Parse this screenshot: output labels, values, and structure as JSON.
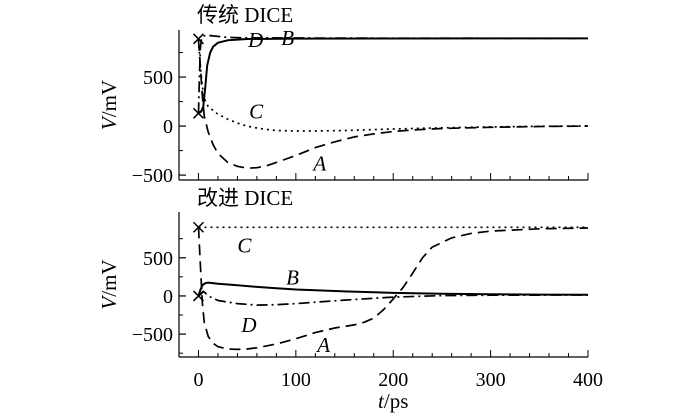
{
  "chart_data": [
    {
      "type": "line",
      "title": "传统 DICE",
      "ylabel_var": "V",
      "ylabel_unit": "/mV",
      "xlabel_var": "t",
      "xlabel_unit": "/ps",
      "xlim": [
        -20,
        400
      ],
      "ylim": [
        -550,
        980
      ],
      "x_ticks": [
        "0",
        "100",
        "200",
        "300",
        "400"
      ],
      "y_ticks": [
        {
          "value": 500,
          "label": "500"
        },
        {
          "value": 0,
          "label": "0"
        },
        {
          "value": -500,
          "label": "−500"
        }
      ],
      "markers": [
        {
          "x": 0,
          "y": 890
        },
        {
          "x": 0,
          "y": 130
        }
      ],
      "series": [
        {
          "name": "A",
          "style": "dashed",
          "label_at": [
            118,
            -380
          ],
          "points": [
            [
              0,
              880
            ],
            [
              2,
              600
            ],
            [
              4,
              300
            ],
            [
              6,
              100
            ],
            [
              10,
              -60
            ],
            [
              15,
              -190
            ],
            [
              20,
              -280
            ],
            [
              30,
              -370
            ],
            [
              40,
              -410
            ],
            [
              50,
              -430
            ],
            [
              60,
              -425
            ],
            [
              70,
              -405
            ],
            [
              80,
              -370
            ],
            [
              100,
              -300
            ],
            [
              120,
              -220
            ],
            [
              140,
              -160
            ],
            [
              160,
              -110
            ],
            [
              180,
              -80
            ],
            [
              200,
              -55
            ],
            [
              220,
              -40
            ],
            [
              250,
              -25
            ],
            [
              300,
              -12
            ],
            [
              350,
              -4
            ],
            [
              400,
              0
            ]
          ]
        },
        {
          "name": "B",
          "style": "dashdot",
          "label_at": [
            85,
            900
          ],
          "points": [
            [
              0,
              130
            ],
            [
              1,
              500
            ],
            [
              2,
              800
            ],
            [
              3,
              880
            ],
            [
              5,
              920
            ],
            [
              10,
              925
            ],
            [
              20,
              915
            ],
            [
              30,
              905
            ],
            [
              50,
              900
            ],
            [
              100,
              898
            ],
            [
              200,
              896
            ],
            [
              300,
              895
            ],
            [
              400,
              895
            ]
          ]
        },
        {
          "name": "C",
          "style": "dotted",
          "label_at": [
            52,
            150
          ],
          "points": [
            [
              0,
              880
            ],
            [
              2,
              600
            ],
            [
              4,
              400
            ],
            [
              6,
              280
            ],
            [
              10,
              200
            ],
            [
              20,
              120
            ],
            [
              30,
              70
            ],
            [
              40,
              30
            ],
            [
              50,
              0
            ],
            [
              60,
              -20
            ],
            [
              70,
              -35
            ],
            [
              80,
              -45
            ],
            [
              100,
              -50
            ],
            [
              120,
              -50
            ],
            [
              150,
              -45
            ],
            [
              200,
              -30
            ],
            [
              250,
              -18
            ],
            [
              300,
              -8
            ],
            [
              350,
              -2
            ],
            [
              400,
              2
            ]
          ]
        },
        {
          "name": "D",
          "style": "solid",
          "label_at": [
            51,
            880
          ],
          "points": [
            [
              0,
              130
            ],
            [
              3,
              150
            ],
            [
              5,
              200
            ],
            [
              7,
              400
            ],
            [
              9,
              620
            ],
            [
              12,
              750
            ],
            [
              15,
              810
            ],
            [
              20,
              850
            ],
            [
              30,
              875
            ],
            [
              50,
              888
            ],
            [
              100,
              892
            ],
            [
              200,
              893
            ],
            [
              300,
              894
            ],
            [
              400,
              894
            ]
          ]
        }
      ]
    },
    {
      "type": "line",
      "title": "改进 DICE",
      "ylabel_var": "V",
      "ylabel_unit": "/mV",
      "xlabel_var": "t",
      "xlabel_unit": "/ps",
      "xlim": [
        -20,
        400
      ],
      "ylim": [
        -800,
        1100
      ],
      "x_ticks": [
        "0",
        "100",
        "200",
        "300",
        "400"
      ],
      "y_ticks": [
        {
          "value": 500,
          "label": "500"
        },
        {
          "value": 0,
          "label": "0"
        },
        {
          "value": -500,
          "label": "−500"
        }
      ],
      "markers": [
        {
          "x": 0,
          "y": 900
        },
        {
          "x": 0,
          "y": 0
        }
      ],
      "series": [
        {
          "name": "A",
          "style": "dashed",
          "label_at": [
            122,
            -640
          ],
          "points": [
            [
              0,
              900
            ],
            [
              2,
              400
            ],
            [
              4,
              -100
            ],
            [
              6,
              -350
            ],
            [
              10,
              -530
            ],
            [
              15,
              -620
            ],
            [
              20,
              -665
            ],
            [
              30,
              -695
            ],
            [
              40,
              -700
            ],
            [
              50,
              -695
            ],
            [
              60,
              -680
            ],
            [
              80,
              -630
            ],
            [
              100,
              -560
            ],
            [
              120,
              -480
            ],
            [
              140,
              -420
            ],
            [
              160,
              -380
            ],
            [
              170,
              -345
            ],
            [
              180,
              -290
            ],
            [
              190,
              -180
            ],
            [
              200,
              -40
            ],
            [
              210,
              110
            ],
            [
              220,
              300
            ],
            [
              230,
              500
            ],
            [
              240,
              640
            ],
            [
              260,
              760
            ],
            [
              280,
              820
            ],
            [
              300,
              850
            ],
            [
              350,
              880
            ],
            [
              400,
              890
            ]
          ]
        },
        {
          "name": "B",
          "style": "solid",
          "label_at": [
            90,
            240
          ],
          "points": [
            [
              0,
              0
            ],
            [
              2,
              80
            ],
            [
              4,
              140
            ],
            [
              6,
              160
            ],
            [
              8,
              170
            ],
            [
              10,
              175
            ],
            [
              20,
              160
            ],
            [
              40,
              140
            ],
            [
              60,
              118
            ],
            [
              80,
              100
            ],
            [
              100,
              85
            ],
            [
              150,
              60
            ],
            [
              200,
              40
            ],
            [
              250,
              28
            ],
            [
              300,
              22
            ],
            [
              350,
              18
            ],
            [
              400,
              15
            ]
          ]
        },
        {
          "name": "C",
          "style": "dotted",
          "label_at": [
            40,
            660
          ],
          "points": [
            [
              0,
              900
            ],
            [
              100,
              900
            ],
            [
              200,
              900
            ],
            [
              300,
              900
            ],
            [
              400,
              900
            ]
          ]
        },
        {
          "name": "D",
          "style": "dashdot",
          "label_at": [
            44,
            -380
          ],
          "points": [
            [
              0,
              0
            ],
            [
              3,
              30
            ],
            [
              5,
              60
            ],
            [
              7,
              40
            ],
            [
              10,
              0
            ],
            [
              20,
              -60
            ],
            [
              40,
              -100
            ],
            [
              60,
              -120
            ],
            [
              80,
              -115
            ],
            [
              100,
              -100
            ],
            [
              150,
              -55
            ],
            [
              200,
              -15
            ],
            [
              250,
              5
            ],
            [
              300,
              10
            ],
            [
              400,
              12
            ]
          ]
        }
      ]
    }
  ]
}
